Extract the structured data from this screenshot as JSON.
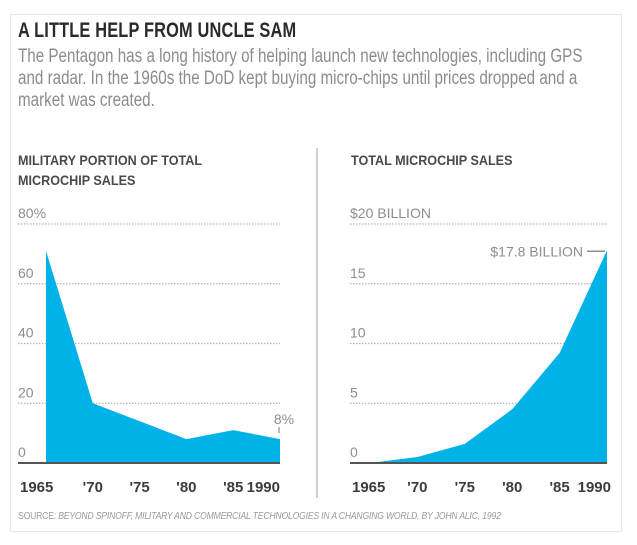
{
  "title": "A LITTLE HELP FROM UNCLE SAM",
  "subtitle": "The Pentagon has a long history of helping launch new technologies, including GPS and radar. In the 1960s the DoD kept buying micro-chips until prices dropped and a market was created.",
  "source_label": "SOURCE:",
  "source_text": "BEYOND SPINOFF, MILITARY AND COMMERCIAL TECHNOLOGIES IN A CHANGING WORLD, BY JOHN ALIC, 1992",
  "colors": {
    "fill": "#00b2e8",
    "grid": "#b5b5b5",
    "tick_text": "#8e8e8e",
    "xtick_text": "#3c3c3c",
    "baseline": "#555555"
  },
  "chart_data": [
    {
      "type": "area",
      "title": "MILITARY PORTION OF TOTAL\nMICROCHIP SALES",
      "x": [
        1965,
        1970,
        1975,
        1980,
        1985,
        1990
      ],
      "x_tick_labels": [
        "1965",
        "'70",
        "'75",
        "'80",
        "'85",
        "1990"
      ],
      "values": [
        71,
        20,
        14,
        8,
        11,
        8
      ],
      "y_unit": "%",
      "ylim": [
        0,
        80
      ],
      "y_ticks": [
        0,
        20,
        40,
        60,
        80
      ],
      "y_tick_labels": [
        "0",
        "20",
        "40",
        "60",
        "80%"
      ],
      "grid": true,
      "annotation": {
        "text": "8%",
        "x": 1990,
        "value": 8
      },
      "xlabel": "",
      "ylabel": ""
    },
    {
      "type": "area",
      "title": "TOTAL MICROCHIP SALES",
      "x": [
        1965,
        1970,
        1975,
        1980,
        1985,
        1990
      ],
      "x_tick_labels": [
        "1965",
        "'70",
        "'75",
        "'80",
        "'85",
        "1990"
      ],
      "values": [
        0,
        0.5,
        1.6,
        4.5,
        9.2,
        17.8
      ],
      "y_unit": "billion dollars",
      "ylim": [
        0,
        20
      ],
      "y_ticks": [
        0,
        5,
        10,
        15,
        20
      ],
      "y_tick_labels": [
        "0",
        "5",
        "10",
        "15",
        "$20 BILLION"
      ],
      "grid": true,
      "annotation": {
        "text": "$17.8 BILLION",
        "x": 1990,
        "value": 17.8
      },
      "xlabel": "",
      "ylabel": ""
    }
  ]
}
